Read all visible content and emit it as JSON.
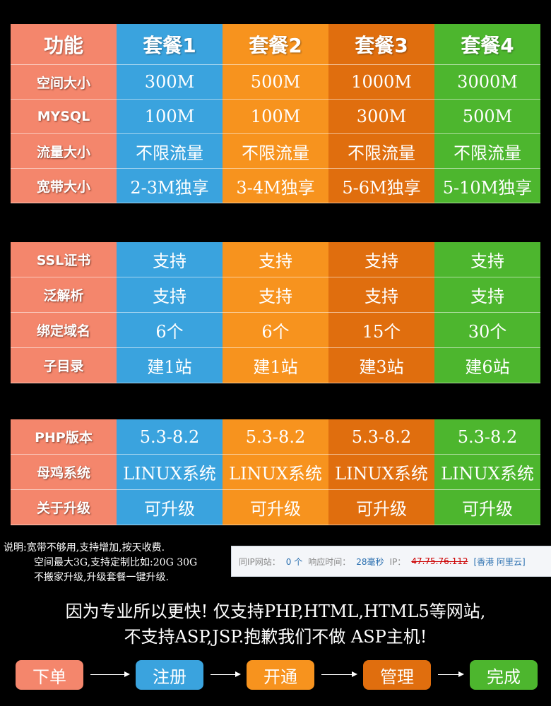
{
  "tables": [
    {
      "header": [
        "功能",
        "套餐1",
        "套餐2",
        "套餐3",
        "套餐4"
      ],
      "rows": [
        [
          "空间大小",
          "300M",
          "500M",
          "1000M",
          "3000M"
        ],
        [
          "MYSQL",
          "100M",
          "100M",
          "300M",
          "500M"
        ],
        [
          "流量大小",
          "不限流量",
          "不限流量",
          "不限流量",
          "不限流量"
        ],
        [
          "宽带大小",
          "2-3M独享",
          "3-4M独享",
          "5-6M独享",
          "5-10M独享"
        ]
      ]
    },
    {
      "rows": [
        [
          "SSL证书",
          "支持",
          "支持",
          "支持",
          "支持"
        ],
        [
          "泛解析",
          "支持",
          "支持",
          "支持",
          "支持"
        ],
        [
          "绑定域名",
          "6个",
          "6个",
          "15个",
          "30个"
        ],
        [
          "子目录",
          "建1站",
          "建1站",
          "建3站",
          "建6站"
        ]
      ]
    },
    {
      "rows": [
        [
          "PHP版本",
          "5.3-8.2",
          "5.3-8.2",
          "5.3-8.2",
          "5.3-8.2"
        ],
        [
          "母鸡系统",
          "LINUX系统",
          "LINUX系统",
          "LINUX系统",
          "LINUX系统"
        ],
        [
          "关于升级",
          "可升级",
          "可升级",
          "可升级",
          "可升级"
        ]
      ]
    }
  ],
  "notes": [
    "说明:宽带不够用,支持增加,按天收费.",
    "空间最大3G,支持定制比如:20G 30G",
    "不搬家升级,升级套餐一键升级."
  ],
  "ip_info": {
    "site_label": "同IP网站：",
    "site_count": "0 个",
    "response_label": "响应时间：",
    "response_time": "28毫秒",
    "ip_label": "IP：",
    "ip": "47.75.76.112",
    "location": "[香港 阿里云]"
  },
  "slogan": [
    "因为专业所以更快! 仅支持PHP,HTML,HTML5等网站,",
    "不支持ASP,JSP.抱歉我们不做 ASP主机!"
  ],
  "steps": [
    "下单",
    "注册",
    "开通",
    "管理",
    "完成"
  ]
}
